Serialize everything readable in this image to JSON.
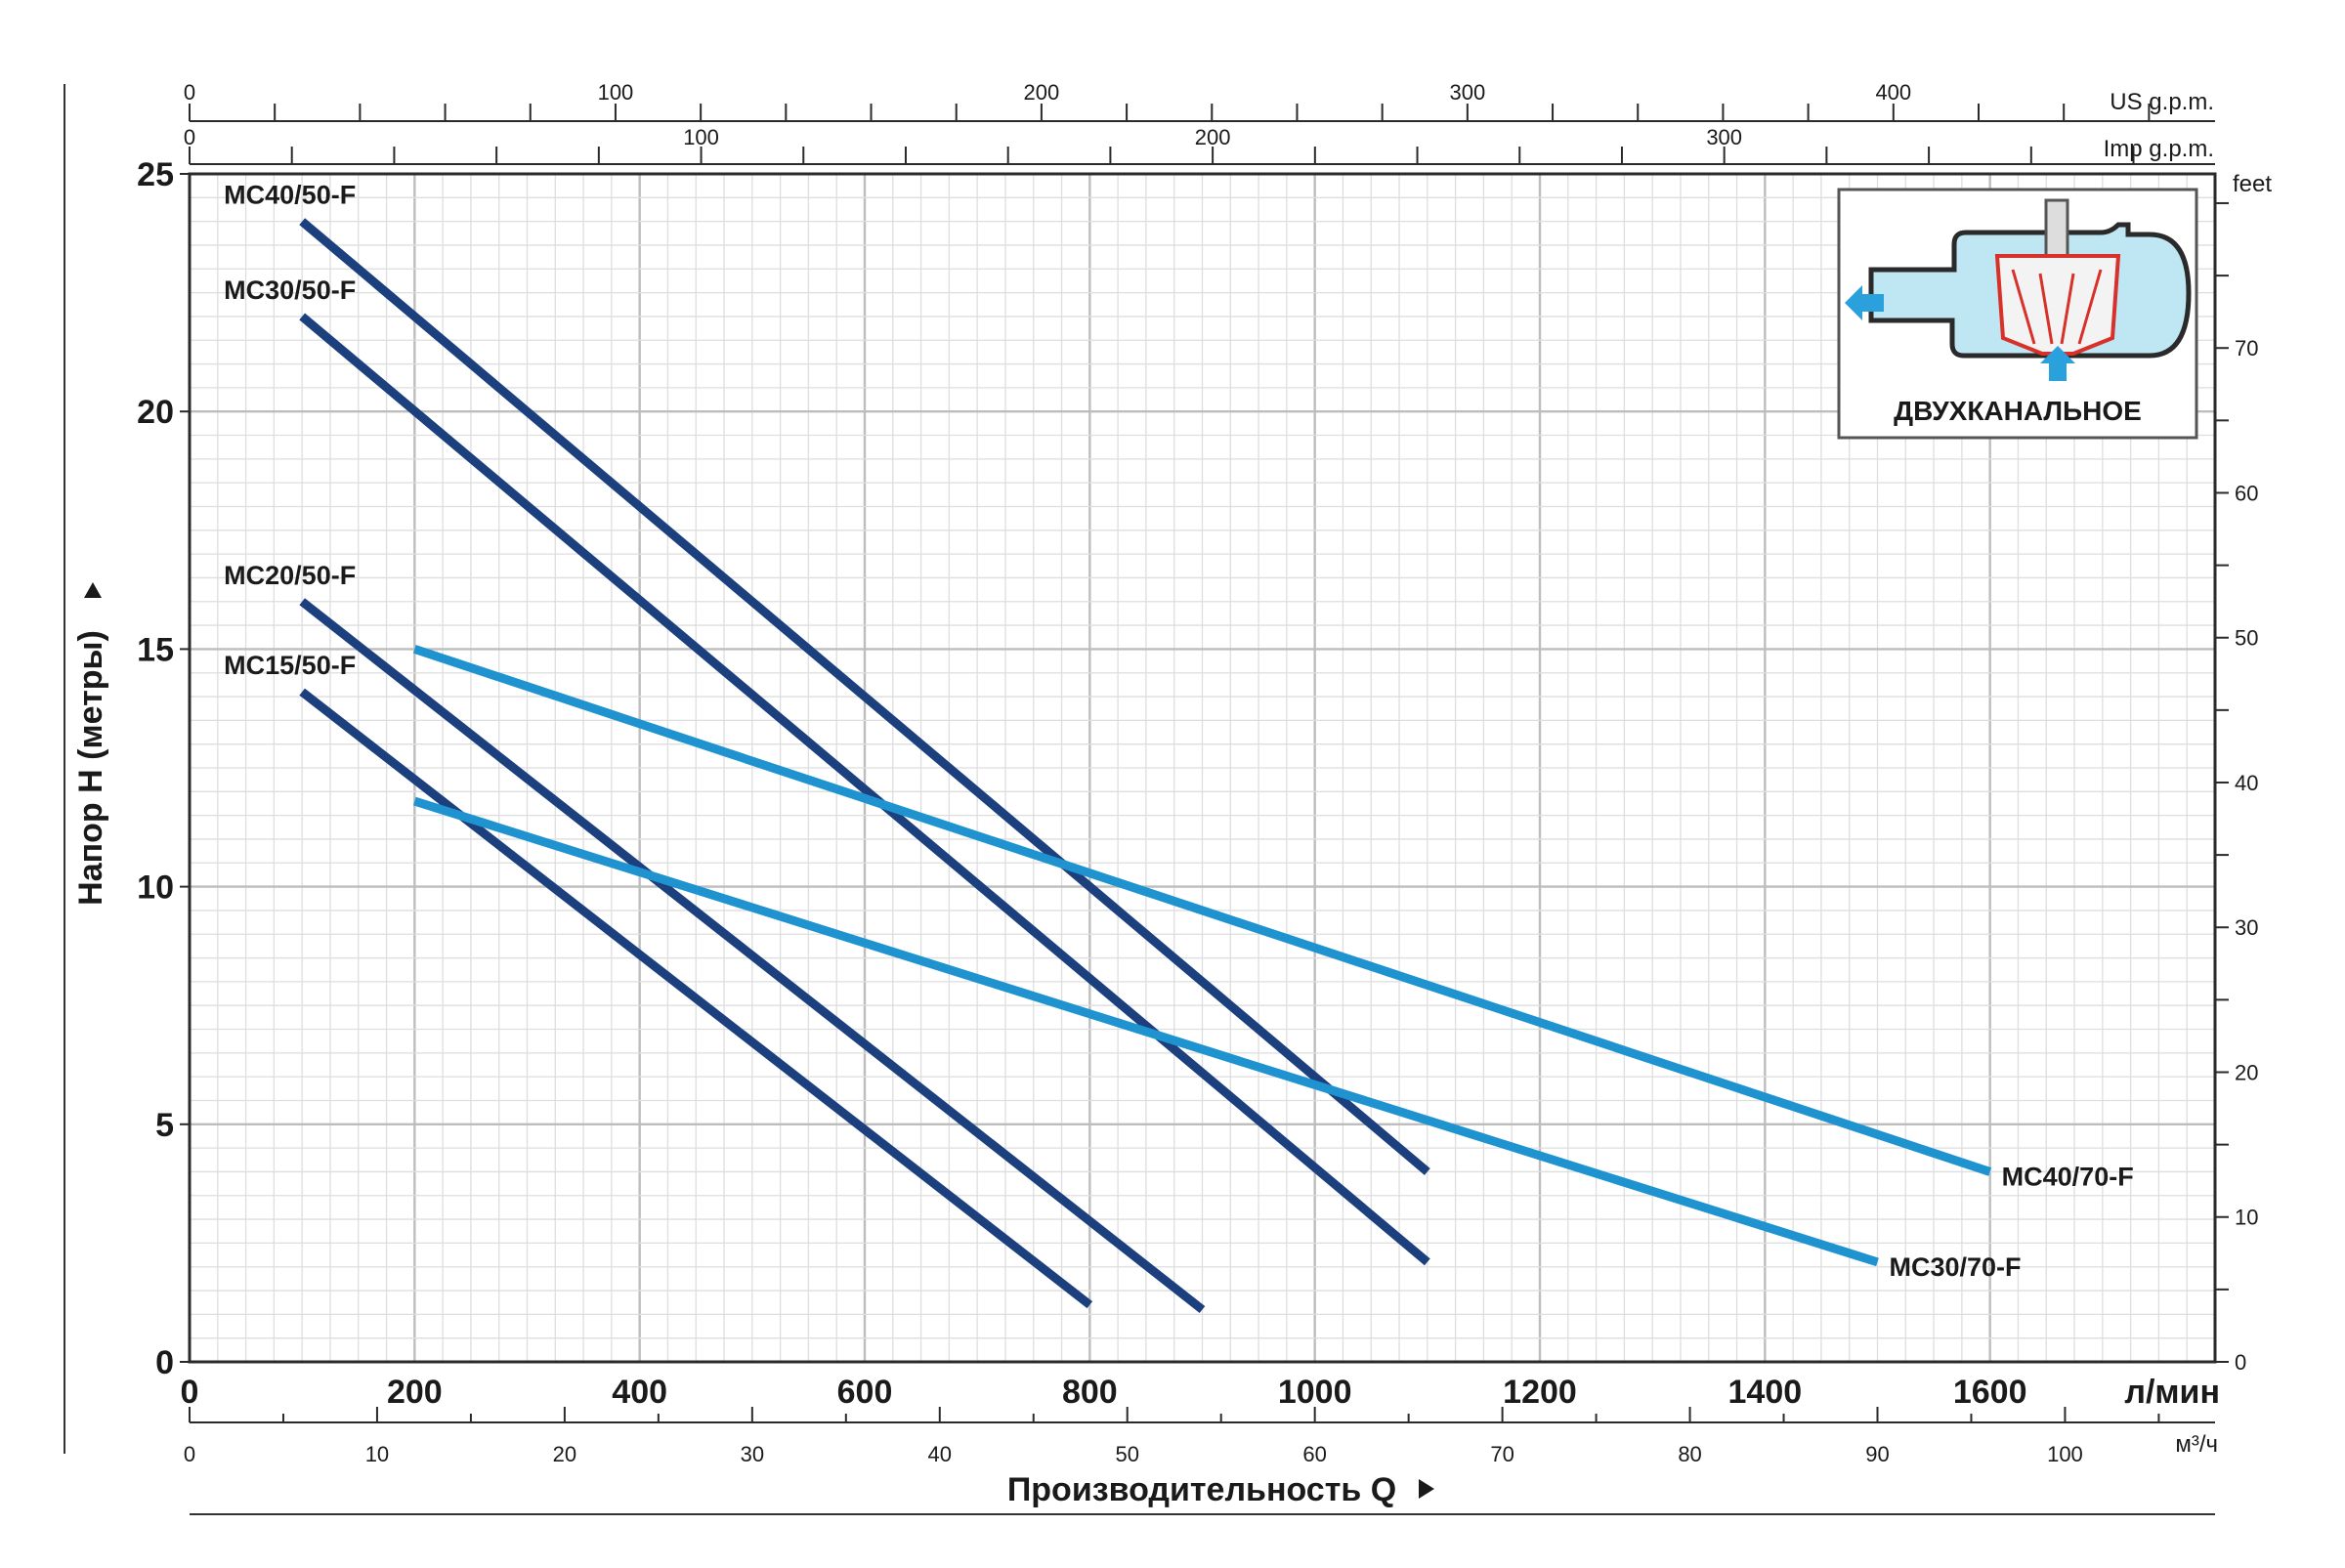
{
  "chart_data": {
    "type": "line",
    "xlabel": "Производительность Q",
    "ylabel": "Напор H (метры)",
    "x_unit": "л/мин",
    "xlim": [
      0,
      1800
    ],
    "ylim": [
      0,
      25
    ],
    "x_ticks": [
      "0",
      "200",
      "400",
      "600",
      "800",
      "1000",
      "1200",
      "1400",
      "1600"
    ],
    "y_ticks": [
      "0",
      "5",
      "10",
      "15",
      "20",
      "25"
    ],
    "secondary_axes": {
      "us_gpm": {
        "label": "US g.p.m.",
        "ticks": [
          "0",
          "100",
          "200",
          "300",
          "400"
        ]
      },
      "imp_gpm": {
        "label": "Imp g.p.m.",
        "ticks": [
          "0",
          "100",
          "200",
          "300"
        ]
      },
      "m3h": {
        "label": "м³/ч",
        "ticks": [
          "0",
          "10",
          "20",
          "30",
          "40",
          "50",
          "60",
          "70",
          "80",
          "90",
          "100"
        ]
      },
      "feet": {
        "label": "feet",
        "ticks": [
          "0",
          "10",
          "20",
          "30",
          "40",
          "50",
          "60",
          "70"
        ]
      }
    },
    "grid": true,
    "series": [
      {
        "name": "MC40/50-F",
        "color": "#1c3f7e",
        "points": [
          [
            100,
            24.0
          ],
          [
            1100,
            4.0
          ]
        ]
      },
      {
        "name": "MC30/50-F",
        "color": "#1c3f7e",
        "points": [
          [
            100,
            22.0
          ],
          [
            1100,
            2.1
          ]
        ]
      },
      {
        "name": "MC20/50-F",
        "color": "#1c3f7e",
        "points": [
          [
            100,
            16.0
          ],
          [
            900,
            1.1
          ]
        ]
      },
      {
        "name": "MC15/50-F",
        "color": "#1c3f7e",
        "points": [
          [
            100,
            14.1
          ],
          [
            800,
            1.2
          ]
        ]
      },
      {
        "name": "MC40/70-F",
        "color": "#1f93d0",
        "points": [
          [
            200,
            15.0
          ],
          [
            1600,
            4.0
          ]
        ]
      },
      {
        "name": "MC30/70-F",
        "color": "#1f93d0",
        "points": [
          [
            200,
            11.8
          ],
          [
            1500,
            2.1
          ]
        ]
      }
    ]
  },
  "inset": {
    "caption": "ДВУХКАНАЛЬНОЕ"
  }
}
